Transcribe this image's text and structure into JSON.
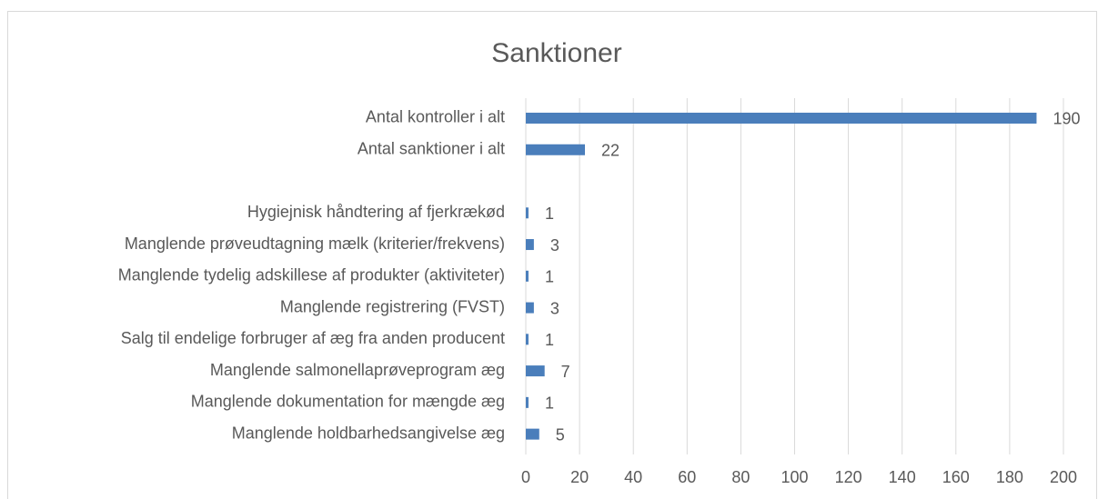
{
  "chart_data": {
    "type": "barh",
    "title": "Sanktioner",
    "categories": [
      "Antal kontroller i alt",
      "Antal sanktioner i alt",
      null,
      "Hygiejnisk håndtering af fjerkrækød",
      "Manglende  prøveudtagning mælk (kriterier/frekvens)",
      "Manglende tydelig adskillese af produkter (aktiviteter)",
      "Manglende registrering (FVST)",
      "Salg til endelige forbruger af æg fra anden producent",
      "Manglende salmonellaprøveprogram æg",
      "Manglende dokumentation for mængde æg",
      "Manglende holdbarhedsangivelse æg"
    ],
    "values": [
      190,
      22,
      null,
      1,
      3,
      1,
      3,
      1,
      7,
      1,
      5
    ],
    "color": "#4a7ebb",
    "xlim": [
      0,
      200
    ],
    "xticks": [
      0,
      20,
      40,
      60,
      80,
      100,
      120,
      140,
      160,
      180,
      200
    ],
    "grid": true
  }
}
